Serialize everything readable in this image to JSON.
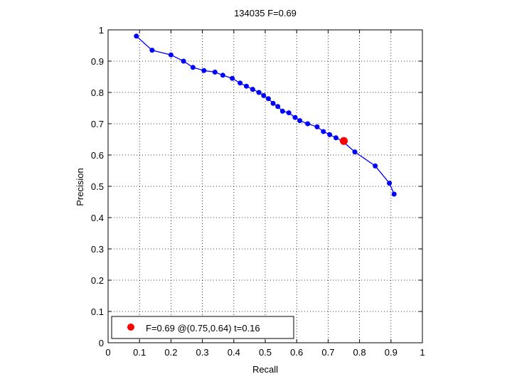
{
  "chart_data": {
    "type": "line",
    "title": "134035 F=0.69",
    "xlabel": "Recall",
    "ylabel": "Precision",
    "xlim": [
      0,
      1
    ],
    "ylim": [
      0,
      1
    ],
    "grid": true,
    "xticks": [
      "0",
      "0.1",
      "0.2",
      "0.3",
      "0.4",
      "0.5",
      "0.6",
      "0.7",
      "0.8",
      "0.9",
      "1"
    ],
    "yticks": [
      "0",
      "0.1",
      "0.2",
      "0.3",
      "0.4",
      "0.5",
      "0.6",
      "0.7",
      "0.8",
      "0.9",
      "1"
    ],
    "series": [
      {
        "color": "#0000ff",
        "marker": "circle",
        "x": [
          0.09,
          0.14,
          0.2,
          0.24,
          0.27,
          0.305,
          0.34,
          0.365,
          0.395,
          0.42,
          0.44,
          0.46,
          0.48,
          0.495,
          0.51,
          0.525,
          0.54,
          0.555,
          0.575,
          0.595,
          0.61,
          0.635,
          0.665,
          0.685,
          0.705,
          0.725,
          0.745,
          0.785,
          0.85,
          0.895,
          0.91
        ],
        "y": [
          0.98,
          0.935,
          0.92,
          0.9,
          0.88,
          0.87,
          0.865,
          0.855,
          0.845,
          0.83,
          0.82,
          0.81,
          0.8,
          0.79,
          0.78,
          0.765,
          0.755,
          0.74,
          0.735,
          0.72,
          0.71,
          0.7,
          0.69,
          0.675,
          0.665,
          0.655,
          0.645,
          0.61,
          0.565,
          0.51,
          0.475
        ]
      }
    ],
    "highlight": {
      "x": 0.75,
      "y": 0.645,
      "color": "#ff0000"
    },
    "legend": {
      "position": "bottom-left",
      "entry": "F=0.69 @(0.75,0.64) t=0.16",
      "marker_color": "#ff0000"
    }
  }
}
